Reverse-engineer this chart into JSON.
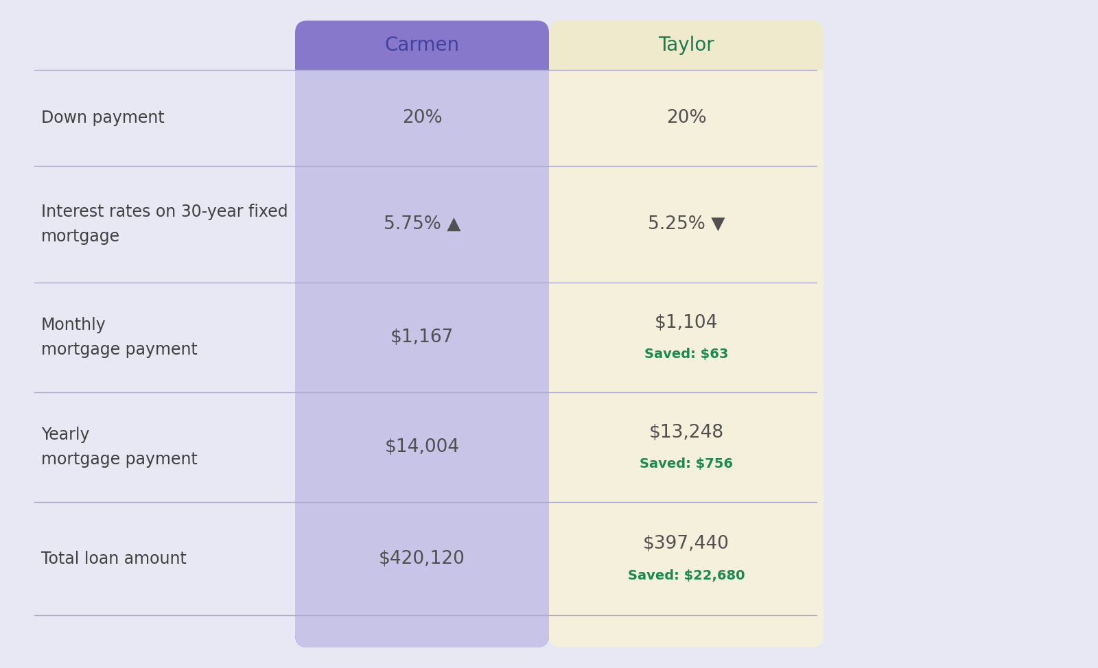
{
  "outer_bg": "#e8e8f4",
  "carmen_header_color": "#8878cc",
  "taylor_header_color": "#f0eacc",
  "carmen_col_color": "#c8c4e8",
  "taylor_col_color": "#f5f0dc",
  "header_carmen_text": "Carmen",
  "header_taylor_text": "Taylor",
  "header_carmen_text_color": "#4040a0",
  "header_taylor_text_color": "#1a7a50",
  "row_labels": [
    "Down payment",
    "Interest rates on 30-year fixed\nmortgage",
    "Monthly\nmortgage payment",
    "Yearly\nmortgage payment",
    "Total loan amount"
  ],
  "carmen_values": [
    "20%",
    "5.75% ▲",
    "$1,167",
    "$14,004",
    "$420,120"
  ],
  "taylor_values": [
    "20%",
    "5.25% ▼",
    "$1,104",
    "$13,248",
    "$397,440"
  ],
  "taylor_saved": [
    "",
    "",
    "Saved: $63",
    "Saved: $756",
    "Saved: $22,680"
  ],
  "value_color": "#505050",
  "saved_color": "#1a8a50",
  "label_color": "#404040",
  "divider_color": "#aaaacc",
  "font_size_header": 20,
  "font_size_value": 19,
  "font_size_label": 17,
  "font_size_saved": 14
}
